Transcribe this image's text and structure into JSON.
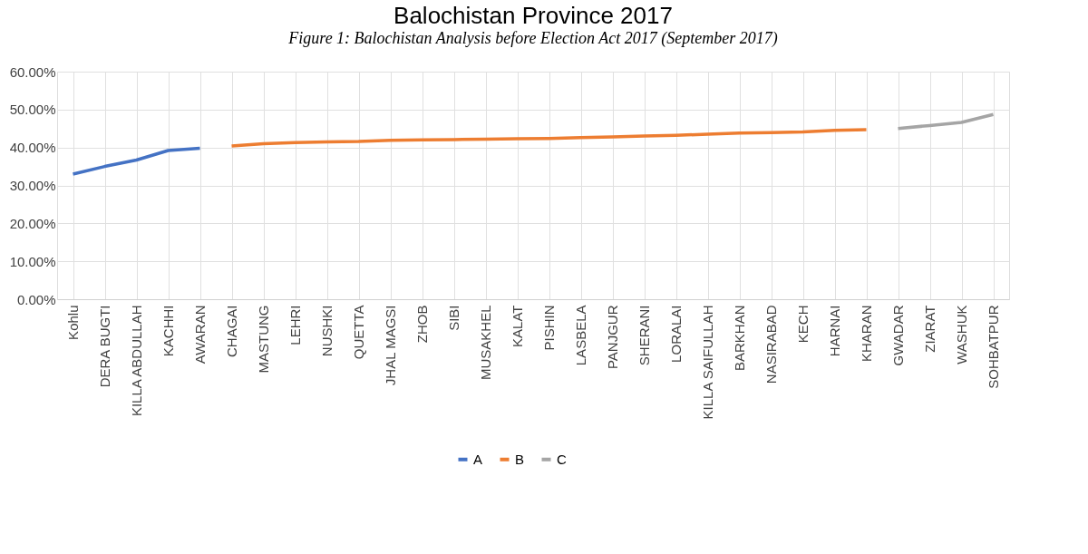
{
  "chart_data": {
    "type": "line",
    "title": "Balochistan Province 2017",
    "annotations": [
      "Figure 1: Balochistan Analysis before Election Act 2017 (September 2017)"
    ],
    "categories": [
      "Kohlu",
      "DERA BUGTI",
      "KILLA ABDULLAH",
      "KACHHI",
      "AWARAN",
      "CHAGAI",
      "MASTUNG",
      "LEHRI",
      "NUSHKI",
      "QUETTA",
      "JHAL MAGSI",
      "ZHOB",
      "SIBI",
      "MUSAKHEL",
      "KALAT",
      "PISHIN",
      "LASBELA",
      "PANJGUR",
      "SHERANI",
      "LORALAI",
      "KILLA SAIFULLAH",
      "BARKHAN",
      "NASIRABAD",
      "KECH",
      "HARNAI",
      "KHARAN",
      "GWADAR",
      "ZIARAT",
      "WASHUK",
      "SOHBATPUR"
    ],
    "series": [
      {
        "name": "A",
        "color": "#4472c4",
        "values": [
          33.0,
          35.0,
          36.7,
          39.2,
          39.8,
          null,
          null,
          null,
          null,
          null,
          null,
          null,
          null,
          null,
          null,
          null,
          null,
          null,
          null,
          null,
          null,
          null,
          null,
          null,
          null,
          null,
          null,
          null,
          null,
          null
        ]
      },
      {
        "name": "B",
        "color": "#ed7d31",
        "values": [
          null,
          null,
          null,
          null,
          null,
          40.4,
          41.0,
          41.3,
          41.5,
          41.6,
          41.9,
          42.0,
          42.1,
          42.2,
          42.3,
          42.4,
          42.6,
          42.8,
          43.0,
          43.2,
          43.5,
          43.8,
          43.9,
          44.1,
          44.5,
          44.7,
          null,
          null,
          null,
          null
        ]
      },
      {
        "name": "C",
        "color": "#a5a5a5",
        "values": [
          null,
          null,
          null,
          null,
          null,
          null,
          null,
          null,
          null,
          null,
          null,
          null,
          null,
          null,
          null,
          null,
          null,
          null,
          null,
          null,
          null,
          null,
          null,
          null,
          null,
          null,
          45.0,
          45.8,
          46.6,
          48.7
        ]
      }
    ],
    "ylim": [
      0,
      60
    ],
    "yticks": [
      {
        "value": 0,
        "label": "0.00%"
      },
      {
        "value": 10,
        "label": "10.00%"
      },
      {
        "value": 20,
        "label": "20.00%"
      },
      {
        "value": 30,
        "label": "30.00%"
      },
      {
        "value": 40,
        "label": "40.00%"
      },
      {
        "value": 50,
        "label": "50.00%"
      },
      {
        "value": 60,
        "label": "60.00%"
      }
    ],
    "grid": true,
    "legend": "bottom",
    "marker": "none",
    "line_style": "solid"
  }
}
